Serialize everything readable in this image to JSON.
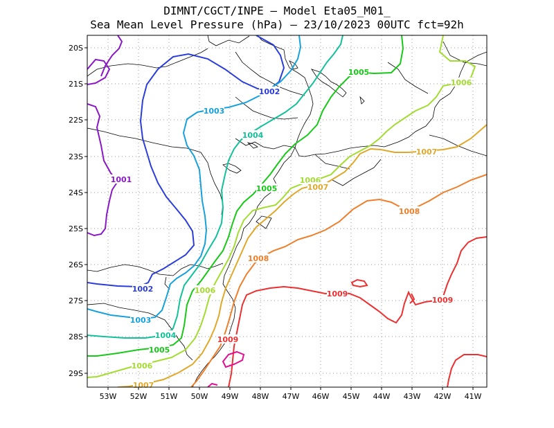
{
  "title": {
    "line1": "DIMNT/CGCT/INPE –  Model Eta05_M01_",
    "line2": "Sea Mean Level Pressure (hPa) – 23/10/2023 00UTC fct=92h"
  },
  "axes": {
    "lat_labels": [
      "20S",
      "21S",
      "22S",
      "23S",
      "24S",
      "25S",
      "26S",
      "27S",
      "28S",
      "29S"
    ],
    "lon_labels": [
      "53W",
      "52W",
      "51W",
      "50W",
      "49W",
      "48W",
      "47W",
      "46W",
      "45W",
      "44W",
      "43W",
      "42W",
      "41W"
    ]
  },
  "contours": [
    {
      "level": 1001,
      "label": "1001",
      "color": "#8b16c8"
    },
    {
      "level": 1002,
      "label": "1002",
      "color": "#2a3ddb"
    },
    {
      "level": 1003,
      "label": "1003",
      "color": "#16a0dc"
    },
    {
      "level": 1004,
      "label": "1004",
      "color": "#12c09a"
    },
    {
      "level": 1005,
      "label": "1005",
      "color": "#18c818"
    },
    {
      "level": 1006,
      "label": "1006",
      "color": "#a3dc30"
    },
    {
      "level": 1007,
      "label": "1007",
      "color": "#e0a82a"
    },
    {
      "level": 1008,
      "label": "1008",
      "color": "#ee7e2a"
    },
    {
      "level": 1009,
      "label": "1009",
      "color": "#ec3030"
    },
    {
      "level": 1010,
      "label": "",
      "color": "#e01090"
    }
  ]
}
